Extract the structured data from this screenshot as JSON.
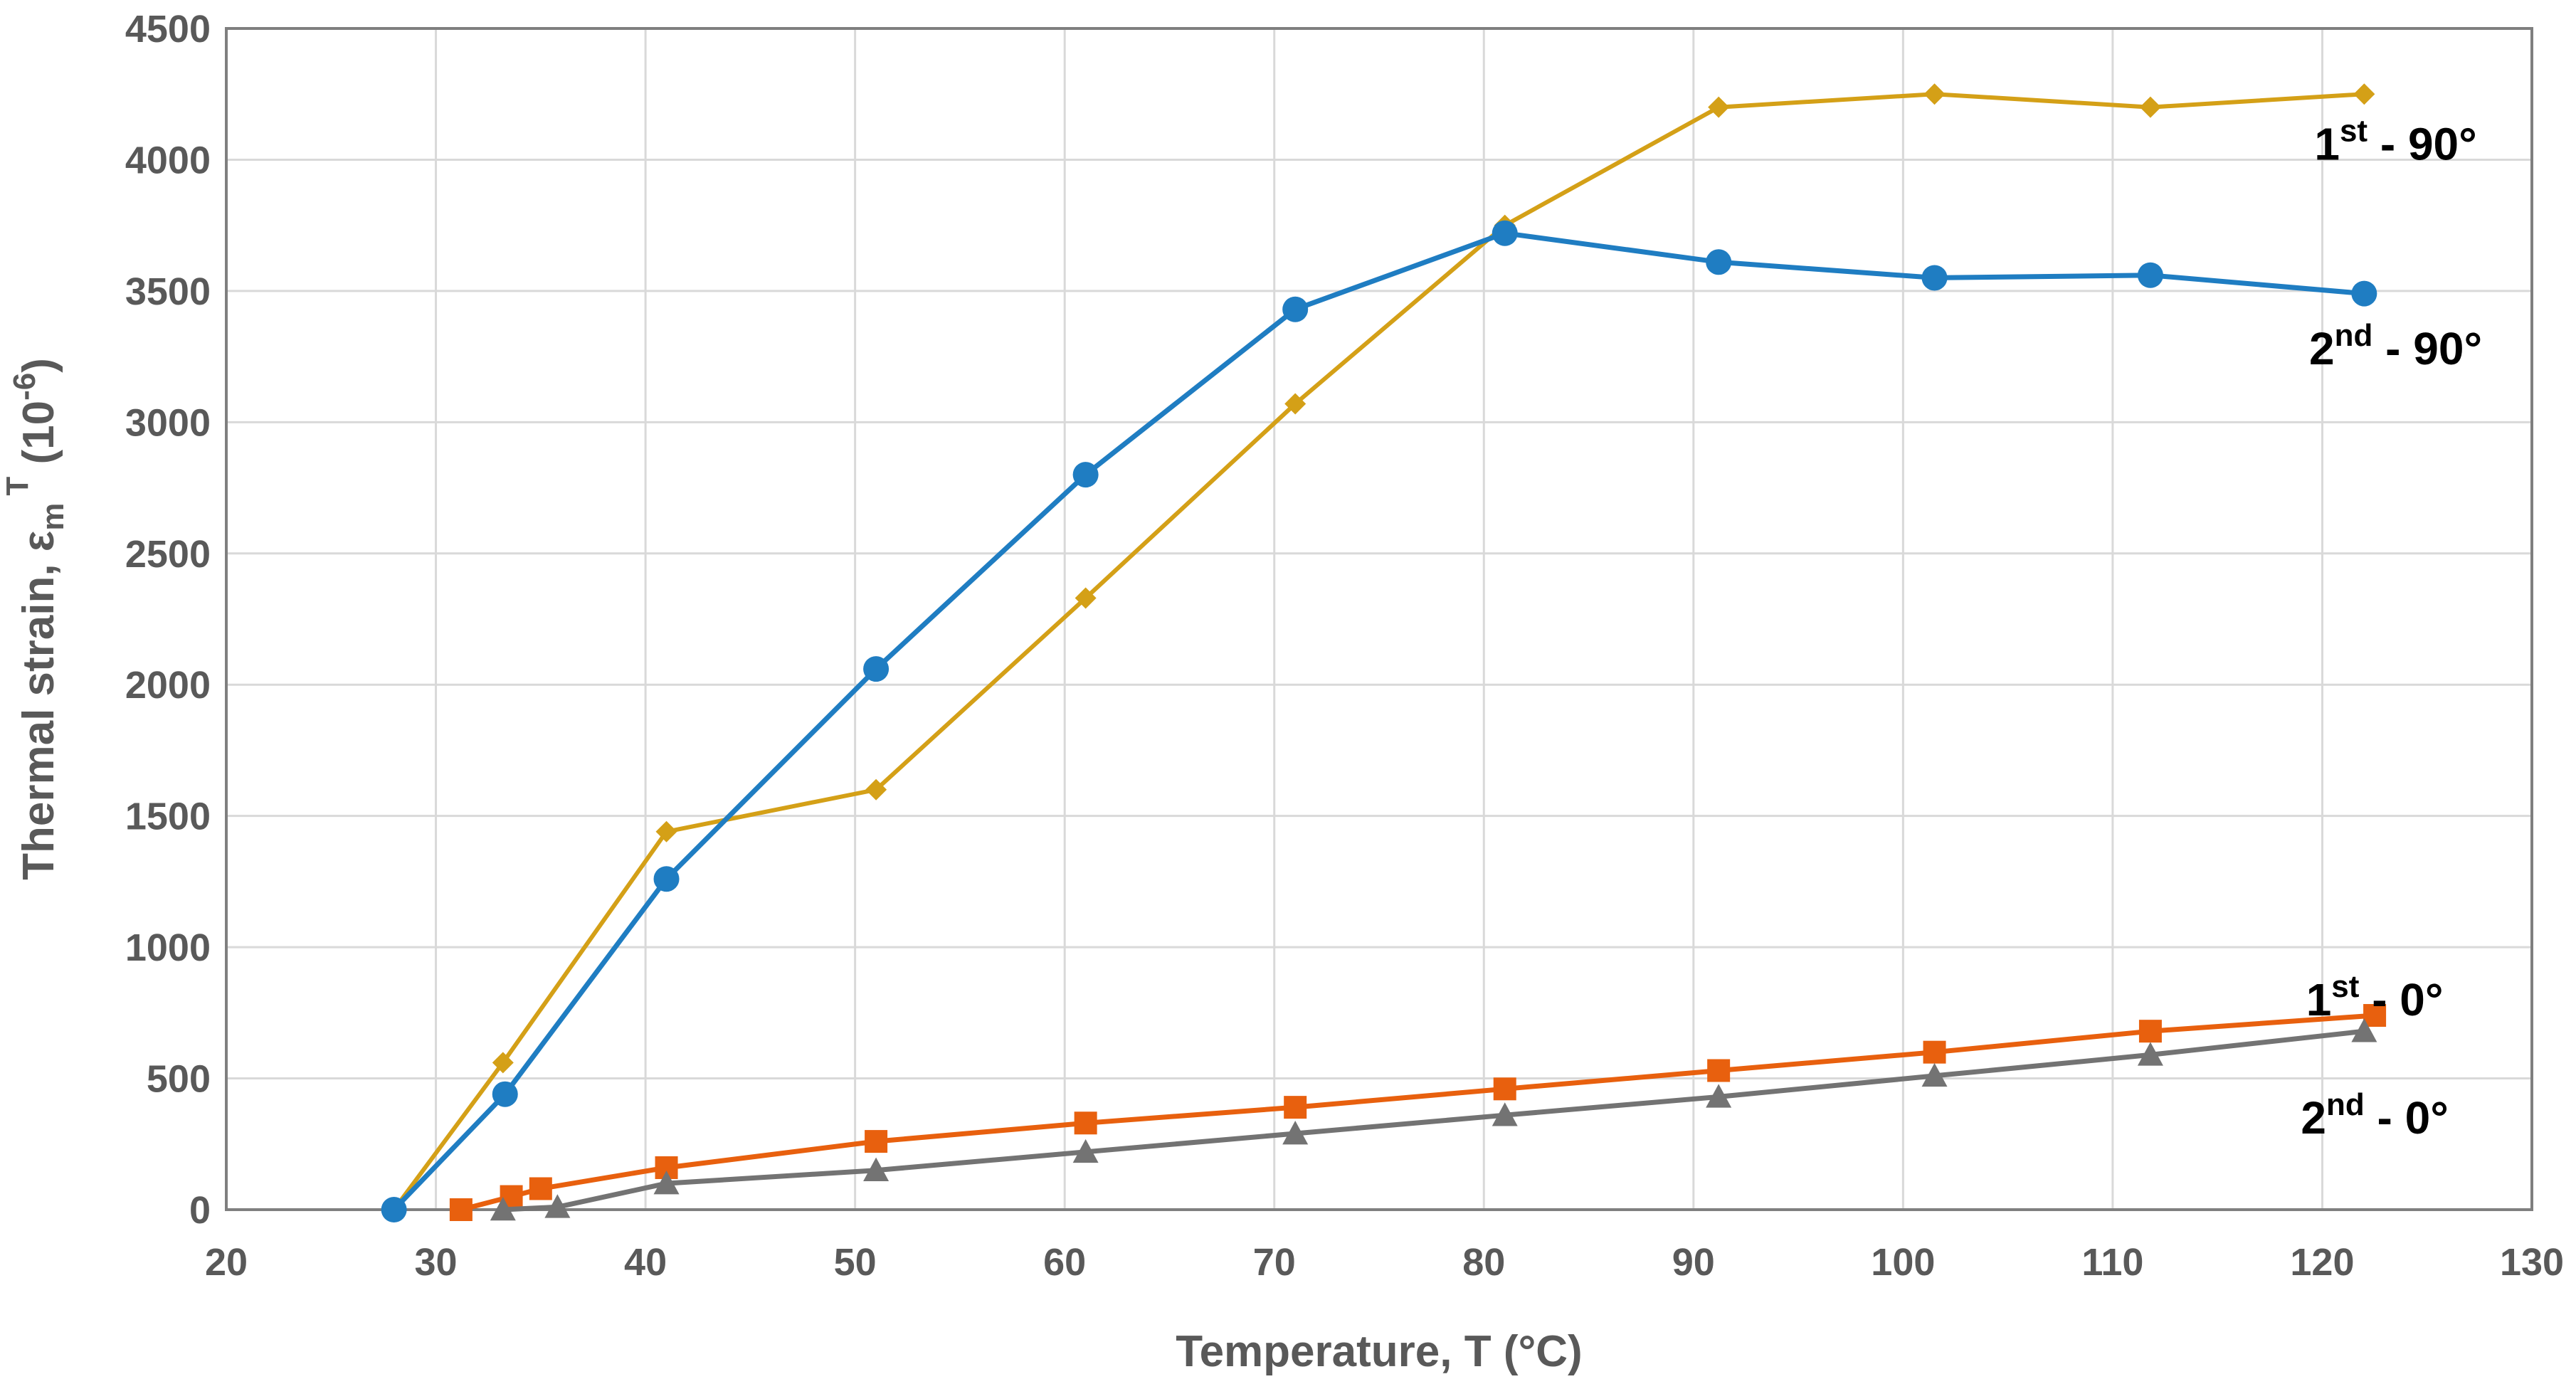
{
  "chart_data": {
    "type": "line",
    "title": "",
    "xlabel": "Temperature, T (°C)",
    "ylabel": {
      "prefix": "Thermal strain, ε",
      "sub": "m",
      "sup": "T",
      "unit_prefix": " (10",
      "unit_sup": "-6",
      "unit_suffix": ")"
    },
    "xlim": [
      20,
      130
    ],
    "ylim": [
      0,
      4500
    ],
    "xticks": [
      20,
      30,
      40,
      50,
      60,
      70,
      80,
      90,
      100,
      110,
      120,
      130
    ],
    "yticks": [
      0,
      500,
      1000,
      1500,
      2000,
      2500,
      3000,
      3500,
      4000,
      4500
    ],
    "grid": true,
    "series": [
      {
        "name": "1st - 90°",
        "color": "#D4A017",
        "marker": "diamond",
        "x": [
          28,
          33.2,
          41,
          51,
          61,
          71,
          81,
          91.2,
          101.5,
          111.8,
          122
        ],
        "y": [
          0,
          560,
          1440,
          1600,
          2330,
          3070,
          3750,
          4200,
          4250,
          4200,
          4250
        ]
      },
      {
        "name": "2nd - 90°",
        "color": "#1F7DC2",
        "marker": "circle",
        "x": [
          28,
          33.3,
          41,
          51,
          61,
          71,
          81,
          91.2,
          101.5,
          111.8,
          122
        ],
        "y": [
          0,
          440,
          1260,
          2060,
          2800,
          3430,
          3720,
          3610,
          3550,
          3560,
          3490
        ]
      },
      {
        "name": "1st - 0°",
        "color": "#E8600E",
        "marker": "square",
        "x": [
          31.2,
          33.6,
          35,
          41,
          51,
          61,
          71,
          81,
          91.2,
          101.5,
          111.8,
          122.5
        ],
        "y": [
          0,
          50,
          80,
          160,
          260,
          330,
          390,
          460,
          530,
          600,
          680,
          740
        ]
      },
      {
        "name": "2nd - 0°",
        "color": "#737373",
        "marker": "triangle",
        "x": [
          33.2,
          35.8,
          41,
          51,
          61,
          71,
          81,
          91.2,
          101.5,
          111.8,
          122
        ],
        "y": [
          0,
          10,
          100,
          150,
          220,
          290,
          360,
          430,
          510,
          590,
          680
        ]
      }
    ],
    "annotations": [
      {
        "series": 0,
        "base": "1",
        "sup": "st",
        "rest": " - 90°",
        "anchor_x": 123.5,
        "anchor_y": 4000
      },
      {
        "series": 1,
        "base": "2",
        "sup": "nd",
        "rest": " - 90°",
        "anchor_x": 123.5,
        "anchor_y": 3220
      },
      {
        "series": 2,
        "base": "1",
        "sup": "st",
        "rest": " - 0°",
        "anchor_x": 122.5,
        "anchor_y": 740
      },
      {
        "series": 3,
        "base": "2",
        "sup": "nd",
        "rest": " - 0°",
        "anchor_x": 122.5,
        "anchor_y": 290
      }
    ]
  }
}
